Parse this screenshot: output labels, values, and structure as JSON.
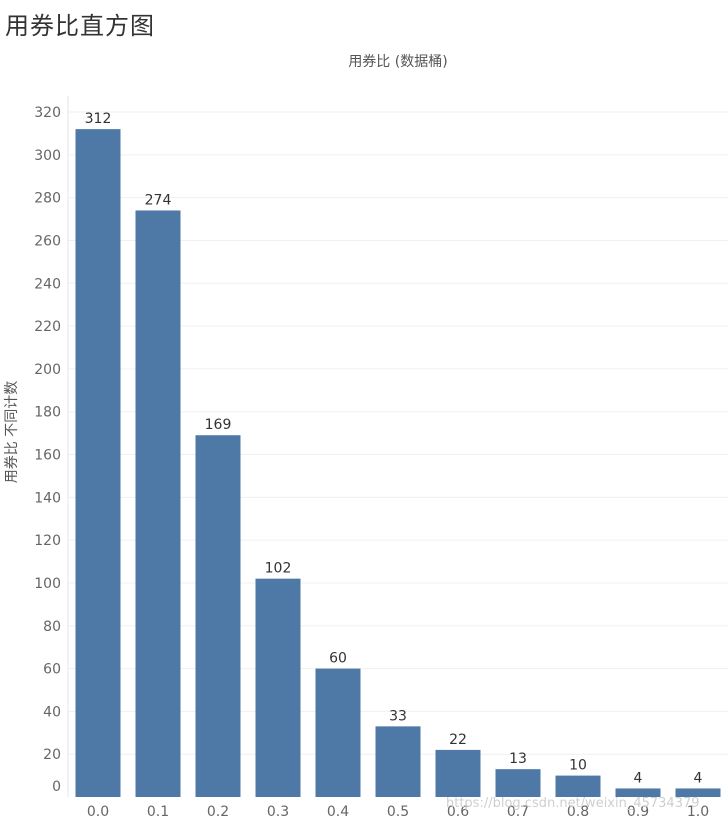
{
  "page": {
    "title": "用券比直方图",
    "watermark": "https://blog.csdn.net/weixin_45734379"
  },
  "chart_data": {
    "type": "bar",
    "title": "",
    "xlabel": "用券比 (数据桶)",
    "ylabel": "用券比 不同计数",
    "categories": [
      "0.0",
      "0.1",
      "0.2",
      "0.3",
      "0.4",
      "0.5",
      "0.6",
      "0.7",
      "0.8",
      "0.9",
      "1.0"
    ],
    "values": [
      312,
      274,
      169,
      102,
      60,
      33,
      22,
      13,
      10,
      4,
      4
    ],
    "ylim": [
      0,
      320
    ],
    "yticks": [
      "0",
      "20",
      "40",
      "60",
      "80",
      "100",
      "120",
      "140",
      "160",
      "180",
      "200",
      "220",
      "240",
      "260",
      "280",
      "300",
      "320"
    ],
    "bar_color": "#4e79a7",
    "grid": true,
    "legend": "none"
  }
}
